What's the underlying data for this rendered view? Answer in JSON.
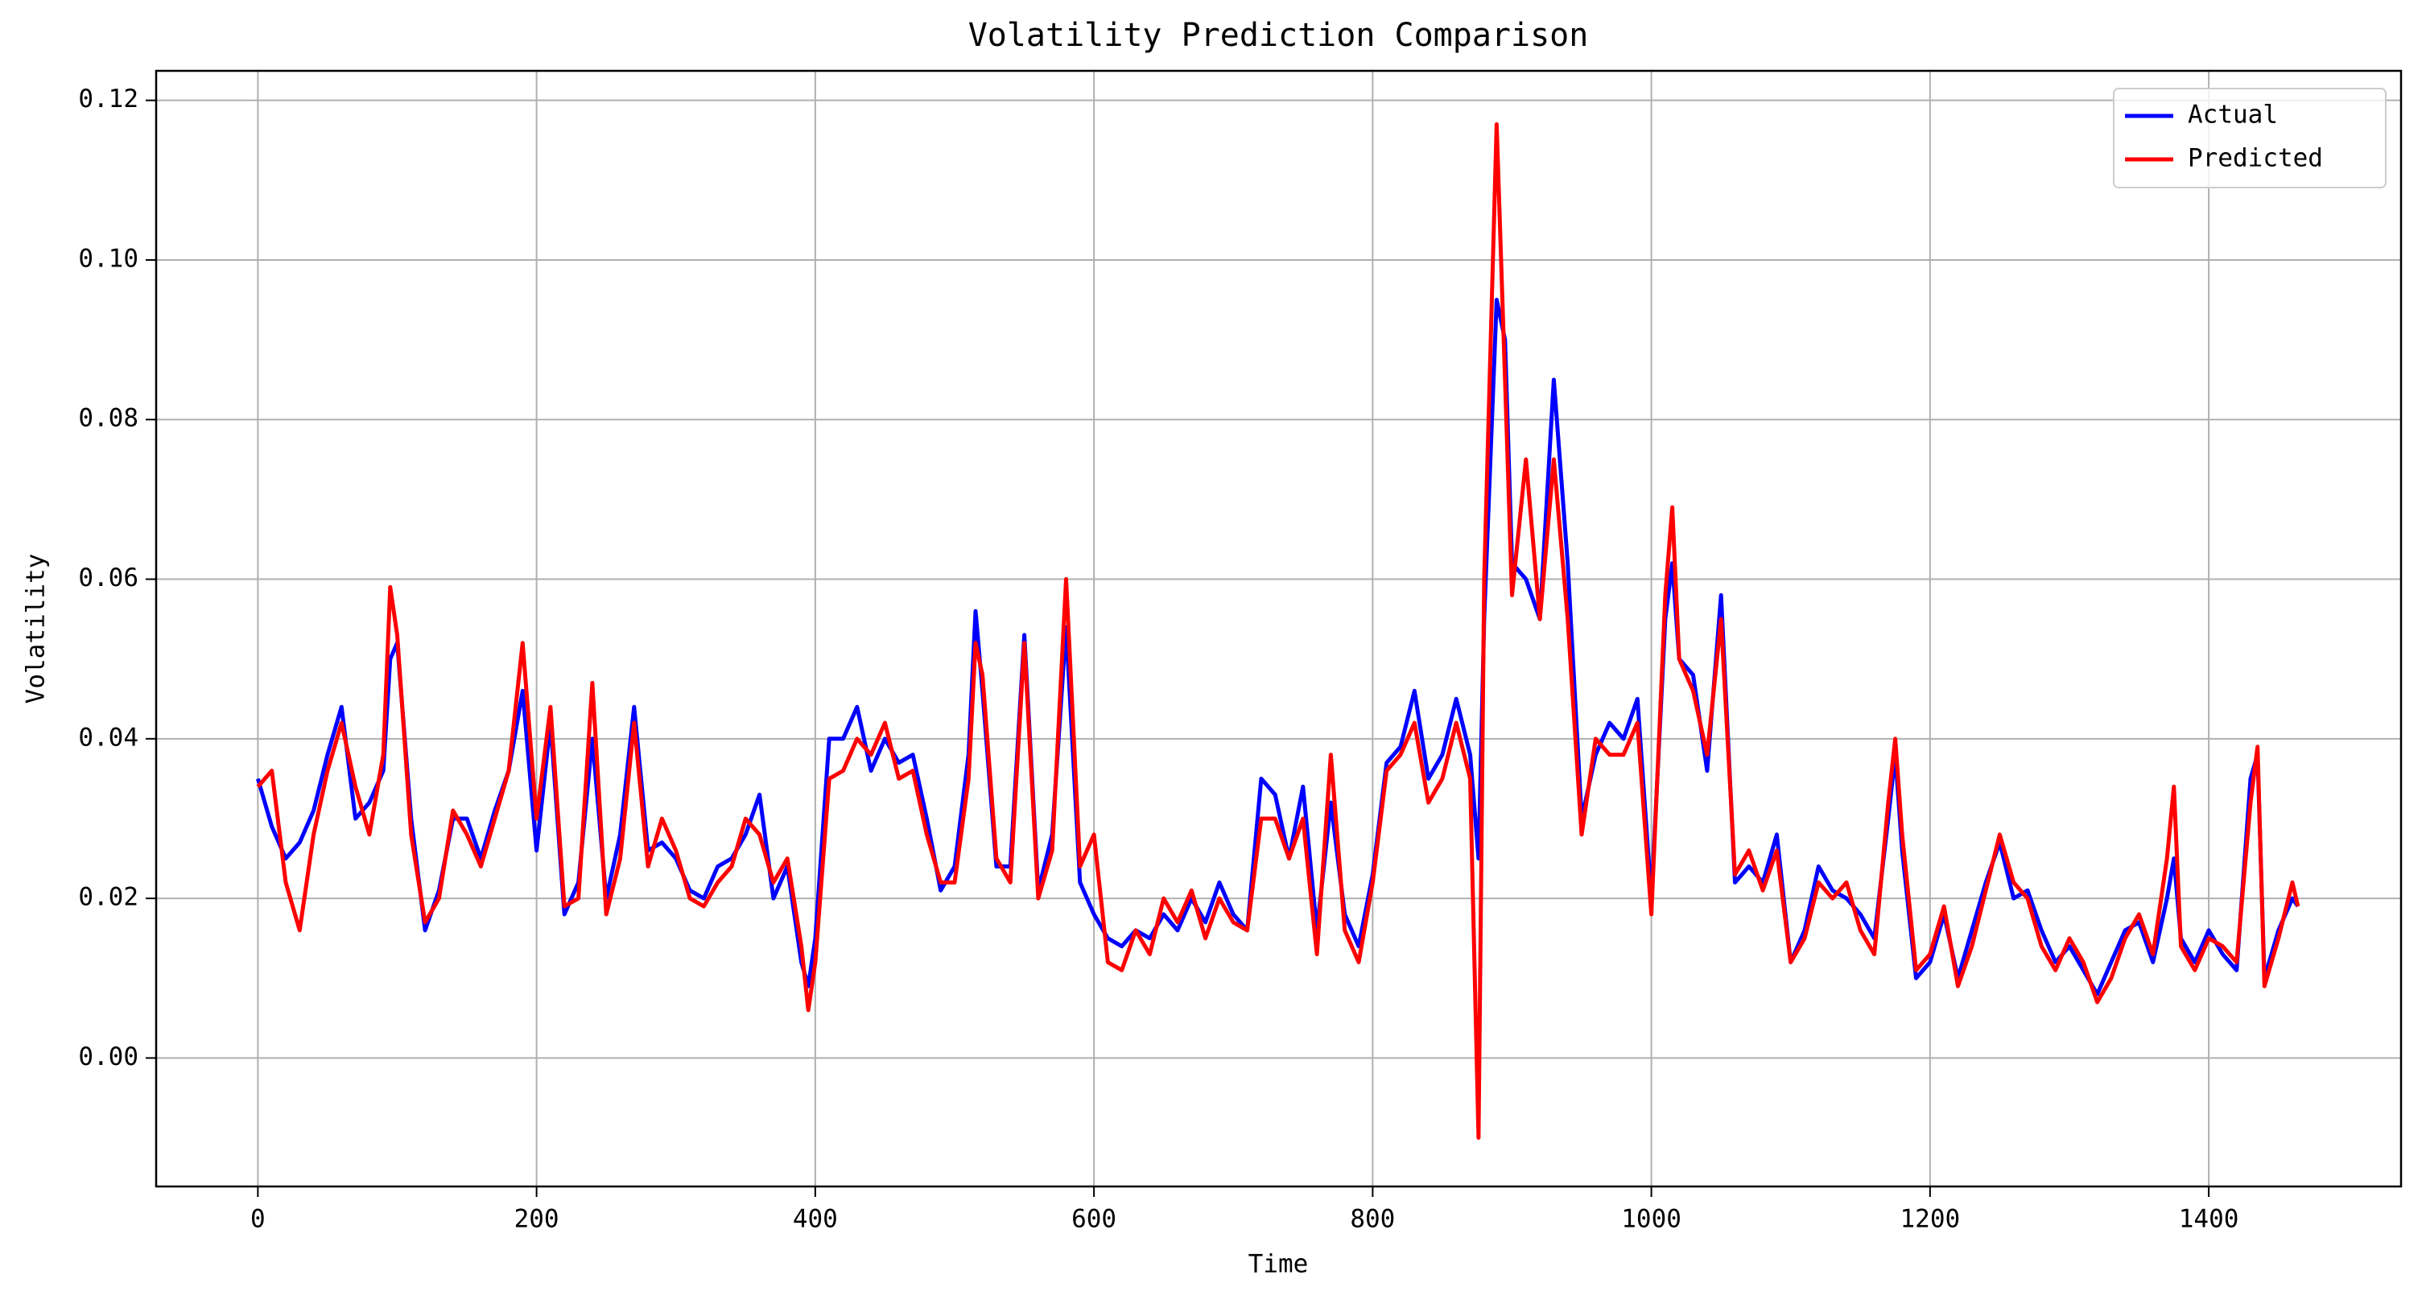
{
  "chart_data": {
    "type": "line",
    "title": "Volatility Prediction Comparison",
    "xlabel": "Time",
    "ylabel": "Volatility",
    "x": [
      0,
      10,
      20,
      30,
      40,
      50,
      60,
      70,
      80,
      90,
      95,
      100,
      110,
      120,
      130,
      140,
      150,
      160,
      170,
      180,
      190,
      200,
      210,
      220,
      230,
      240,
      250,
      260,
      270,
      280,
      290,
      300,
      310,
      320,
      330,
      340,
      350,
      360,
      370,
      380,
      390,
      395,
      400,
      410,
      420,
      430,
      440,
      450,
      460,
      470,
      480,
      490,
      500,
      510,
      515,
      520,
      530,
      540,
      550,
      560,
      570,
      580,
      590,
      600,
      610,
      620,
      630,
      640,
      650,
      660,
      670,
      680,
      690,
      700,
      710,
      720,
      730,
      740,
      750,
      760,
      770,
      780,
      790,
      800,
      810,
      820,
      830,
      840,
      850,
      860,
      870,
      876,
      880,
      889,
      895,
      900,
      910,
      920,
      930,
      940,
      950,
      960,
      970,
      980,
      990,
      1000,
      1010,
      1015,
      1020,
      1030,
      1040,
      1050,
      1060,
      1070,
      1080,
      1090,
      1100,
      1110,
      1120,
      1130,
      1140,
      1150,
      1160,
      1170,
      1175,
      1180,
      1190,
      1200,
      1210,
      1220,
      1230,
      1240,
      1250,
      1260,
      1270,
      1280,
      1290,
      1300,
      1310,
      1320,
      1330,
      1340,
      1350,
      1360,
      1370,
      1375,
      1380,
      1390,
      1400,
      1410,
      1420,
      1430,
      1435,
      1440,
      1450,
      1460,
      1464
    ],
    "series": [
      {
        "name": "Actual",
        "color": "#0000ff",
        "values": [
          0.035,
          0.029,
          0.025,
          0.027,
          0.031,
          0.038,
          0.044,
          0.03,
          0.032,
          0.036,
          0.05,
          0.052,
          0.03,
          0.016,
          0.021,
          0.03,
          0.03,
          0.025,
          0.031,
          0.036,
          0.046,
          0.026,
          0.042,
          0.018,
          0.022,
          0.04,
          0.02,
          0.028,
          0.044,
          0.026,
          0.027,
          0.025,
          0.021,
          0.02,
          0.024,
          0.025,
          0.028,
          0.033,
          0.02,
          0.024,
          0.012,
          0.009,
          0.015,
          0.04,
          0.04,
          0.044,
          0.036,
          0.04,
          0.037,
          0.038,
          0.03,
          0.021,
          0.024,
          0.038,
          0.056,
          0.046,
          0.024,
          0.024,
          0.053,
          0.021,
          0.028,
          0.054,
          0.022,
          0.018,
          0.015,
          0.014,
          0.016,
          0.015,
          0.018,
          0.016,
          0.02,
          0.017,
          0.022,
          0.018,
          0.016,
          0.035,
          0.033,
          0.025,
          0.034,
          0.016,
          0.032,
          0.018,
          0.014,
          0.023,
          0.037,
          0.039,
          0.046,
          0.035,
          0.038,
          0.045,
          0.038,
          0.025,
          0.055,
          0.095,
          0.09,
          0.062,
          0.06,
          0.055,
          0.085,
          0.062,
          0.03,
          0.038,
          0.042,
          0.04,
          0.045,
          0.02,
          0.055,
          0.062,
          0.05,
          0.048,
          0.036,
          0.058,
          0.022,
          0.024,
          0.022,
          0.028,
          0.012,
          0.016,
          0.024,
          0.021,
          0.02,
          0.018,
          0.015,
          0.03,
          0.038,
          0.026,
          0.01,
          0.012,
          0.018,
          0.01,
          0.016,
          0.022,
          0.027,
          0.02,
          0.021,
          0.016,
          0.012,
          0.014,
          0.011,
          0.008,
          0.012,
          0.016,
          0.017,
          0.012,
          0.02,
          0.025,
          0.015,
          0.012,
          0.016,
          0.013,
          0.011,
          0.035,
          0.038,
          0.01,
          0.016,
          0.02,
          0.019
        ]
      },
      {
        "name": "Predicted",
        "color": "#ff0000",
        "values": [
          0.034,
          0.036,
          0.022,
          0.016,
          0.028,
          0.036,
          0.042,
          0.034,
          0.028,
          0.038,
          0.059,
          0.053,
          0.028,
          0.017,
          0.02,
          0.031,
          0.028,
          0.024,
          0.03,
          0.036,
          0.052,
          0.03,
          0.044,
          0.019,
          0.02,
          0.047,
          0.018,
          0.025,
          0.042,
          0.024,
          0.03,
          0.026,
          0.02,
          0.019,
          0.022,
          0.024,
          0.03,
          0.028,
          0.022,
          0.025,
          0.014,
          0.006,
          0.012,
          0.035,
          0.036,
          0.04,
          0.038,
          0.042,
          0.035,
          0.036,
          0.028,
          0.022,
          0.022,
          0.035,
          0.052,
          0.048,
          0.025,
          0.022,
          0.052,
          0.02,
          0.026,
          0.06,
          0.024,
          0.028,
          0.012,
          0.011,
          0.016,
          0.013,
          0.02,
          0.017,
          0.021,
          0.015,
          0.02,
          0.017,
          0.016,
          0.03,
          0.03,
          0.025,
          0.03,
          0.013,
          0.038,
          0.016,
          0.012,
          0.022,
          0.036,
          0.038,
          0.042,
          0.032,
          0.035,
          0.042,
          0.035,
          -0.01,
          0.06,
          0.117,
          0.085,
          0.058,
          0.075,
          0.055,
          0.075,
          0.055,
          0.028,
          0.04,
          0.038,
          0.038,
          0.042,
          0.018,
          0.058,
          0.069,
          0.05,
          0.046,
          0.038,
          0.055,
          0.023,
          0.026,
          0.021,
          0.026,
          0.012,
          0.015,
          0.022,
          0.02,
          0.022,
          0.016,
          0.013,
          0.032,
          0.04,
          0.028,
          0.011,
          0.013,
          0.019,
          0.009,
          0.014,
          0.021,
          0.028,
          0.022,
          0.02,
          0.014,
          0.011,
          0.015,
          0.012,
          0.007,
          0.01,
          0.015,
          0.018,
          0.013,
          0.025,
          0.034,
          0.014,
          0.011,
          0.015,
          0.014,
          0.012,
          0.032,
          0.039,
          0.009,
          0.015,
          0.022,
          0.019
        ]
      }
    ],
    "xlim": [
      -73,
      1538
    ],
    "ylim": [
      -0.0161,
      0.1237
    ],
    "xticks": [
      0,
      200,
      400,
      600,
      800,
      1000,
      1200,
      1400
    ],
    "yticks": [
      {
        "value": 0,
        "label": "0.00"
      },
      0.02,
      0.04,
      0.06,
      0.08,
      {
        "value": 0.1,
        "label": "0.10"
      },
      0.12
    ],
    "grid": true,
    "legend": "upper right"
  }
}
